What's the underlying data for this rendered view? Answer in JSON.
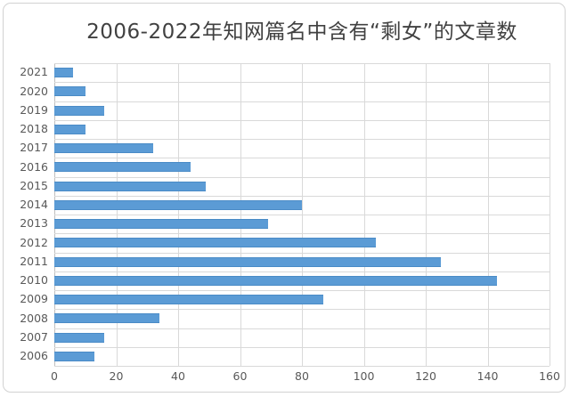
{
  "window": {
    "background_color": "#ffffff",
    "frame_border_color": "#d2d2d2"
  },
  "chart_data": {
    "type": "bar",
    "orientation": "horizontal",
    "title": "2006-2022年知网篇名中含有“剩女”的文章数",
    "categories": [
      "2021",
      "2020",
      "2019",
      "2018",
      "2017",
      "2016",
      "2015",
      "2014",
      "2013",
      "2012",
      "2011",
      "2010",
      "2009",
      "2008",
      "2007",
      "2006"
    ],
    "values": [
      6,
      10,
      16,
      10,
      32,
      44,
      49,
      80,
      69,
      104,
      125,
      143,
      87,
      34,
      16,
      13
    ],
    "xlabel": "",
    "ylabel": "",
    "xlim": [
      0,
      160
    ],
    "x_ticks": [
      0,
      20,
      40,
      60,
      80,
      100,
      120,
      140,
      160
    ],
    "grid": "both",
    "legend_position": "none",
    "bar_color": "#5b9bd5",
    "gridline_color": "#d9d9d9",
    "axis_label_color": "#595959",
    "title_color": "#414141"
  }
}
